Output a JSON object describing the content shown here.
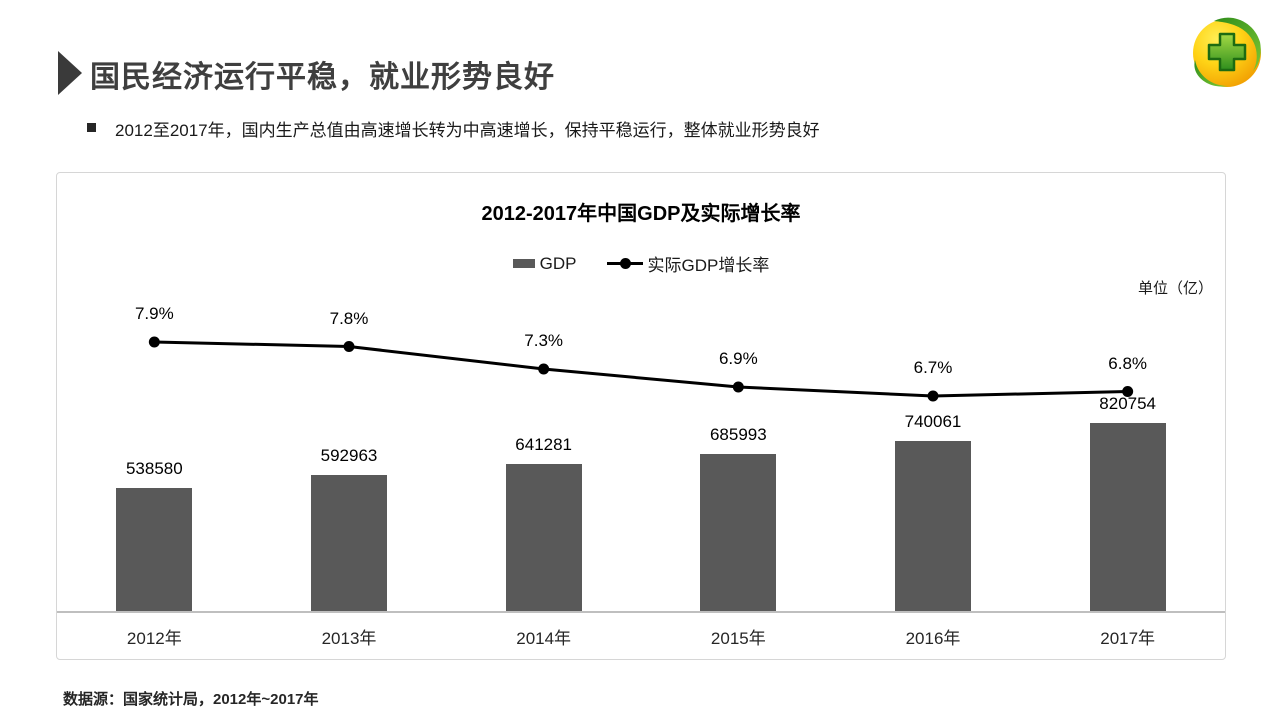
{
  "header": {
    "title": "国民经济运行平稳，就业形势良好",
    "bullet": "2012至2017年，国内生产总值由高速增长转为中高速增长，保持平稳运行，整体就业形势良好"
  },
  "chart": {
    "title": "2012-2017年中国GDP及实际增长率",
    "unit_label": "单位（亿）",
    "legend": [
      {
        "label": "GDP",
        "marker": "bar-swatch"
      },
      {
        "label": "实际GDP增长率",
        "marker": "line-dot"
      }
    ]
  },
  "chart_data": {
    "type": "bar",
    "title": "2012-2017年中国GDP及实际增长率",
    "categories": [
      "2012年",
      "2013年",
      "2014年",
      "2015年",
      "2016年",
      "2017年"
    ],
    "series": [
      {
        "name": "GDP",
        "type": "bar",
        "values": [
          538580,
          592963,
          641281,
          685993,
          740061,
          820754
        ],
        "labels": [
          "538580",
          "592963",
          "641281",
          "685993",
          "740061",
          "820754"
        ],
        "unit": "亿",
        "color": "#595959"
      },
      {
        "name": "实际GDP增长率",
        "type": "line",
        "values": [
          7.9,
          7.8,
          7.3,
          6.9,
          6.7,
          6.8
        ],
        "labels": [
          "7.9%",
          "7.8%",
          "7.3%",
          "6.9%",
          "6.7%",
          "6.8%"
        ],
        "unit": "%",
        "color": "#000000"
      }
    ],
    "legend_position": "top",
    "grid": false,
    "bar_axis_origin": 0,
    "data_labels": true
  },
  "footer": {
    "source": "数据源：国家统计局，2012年~2017年"
  },
  "colors": {
    "bar": "#595959",
    "line": "#000000",
    "axis": "#bfbfbf",
    "panel_border": "#d6d6d6"
  }
}
